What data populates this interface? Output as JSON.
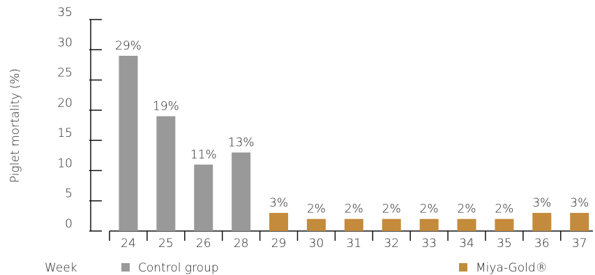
{
  "chart_data": {
    "type": "bar",
    "y_label": "Piglet mortality (%)",
    "x_label": "Week",
    "categories": [
      "24",
      "25",
      "26",
      "28",
      "29",
      "30",
      "31",
      "32",
      "33",
      "34",
      "35",
      "36",
      "37"
    ],
    "series": [
      {
        "name": "Control group",
        "color": "#999999",
        "values": [
          29,
          19,
          11,
          13,
          null,
          null,
          null,
          null,
          null,
          null,
          null,
          null,
          null
        ],
        "value_labels": [
          "29%",
          "19%",
          "11%",
          "13%",
          null,
          null,
          null,
          null,
          null,
          null,
          null,
          null,
          null
        ]
      },
      {
        "name": "Miya-Gold®",
        "color": "#c48b3c",
        "values": [
          null,
          null,
          null,
          null,
          3,
          2,
          2,
          2,
          2,
          2,
          2,
          3,
          3
        ],
        "value_labels": [
          null,
          null,
          null,
          null,
          "3%",
          "2%",
          "2%",
          "2%",
          "2%",
          "2%",
          "2%",
          "3%",
          "3%"
        ]
      }
    ],
    "ylim": [
      0,
      35
    ],
    "yticks": [
      0,
      5,
      10,
      15,
      20,
      25,
      30,
      35
    ]
  }
}
